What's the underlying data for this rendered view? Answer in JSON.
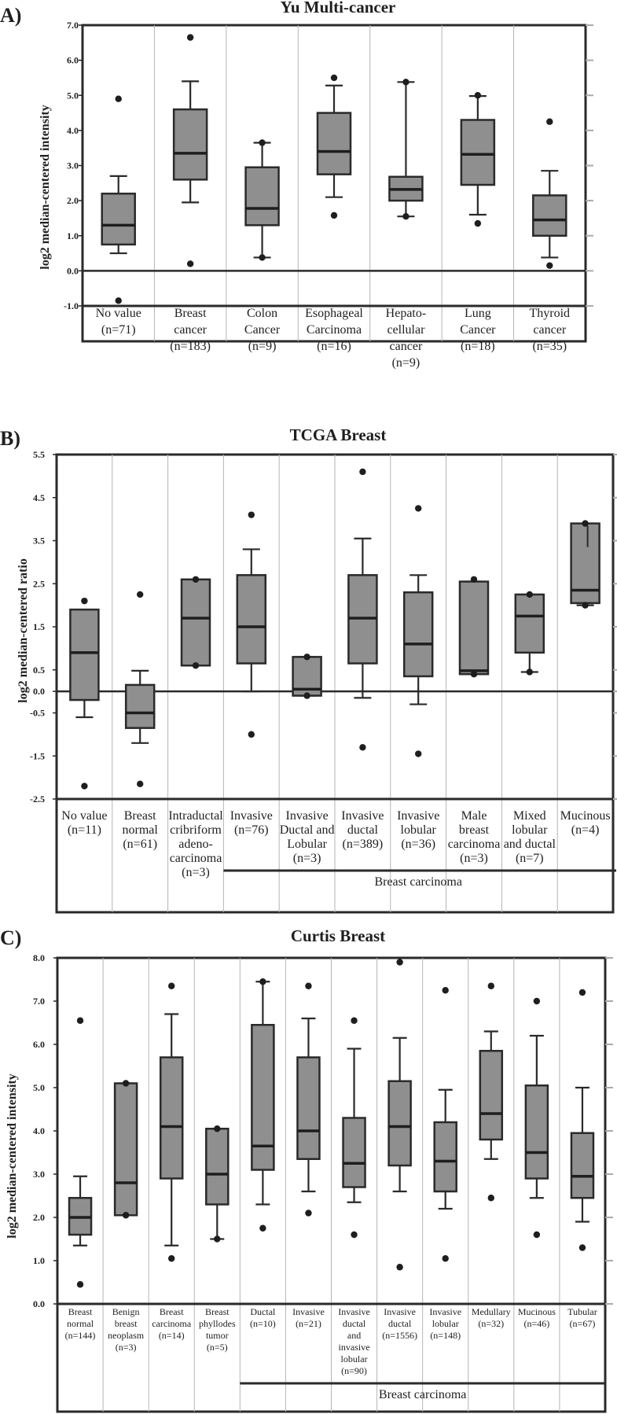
{
  "chart_data": [
    {
      "type": "box",
      "panel": "A)",
      "title": "Yu Multi-cancer",
      "ylabel": "log2 median-centered intensity",
      "ylim": [
        -1.0,
        7.0
      ],
      "yticks": [
        "7.0",
        "6.0",
        "5.0",
        "4.0",
        "3.0",
        "2.0",
        "1.0",
        "0.0",
        "-1.0"
      ],
      "categories": [
        [
          "No value",
          "(n=71)"
        ],
        [
          "Breast",
          "cancer",
          "(n=183)"
        ],
        [
          "Colon",
          "Cancer",
          "(n=9)"
        ],
        [
          "Esophageal",
          "Carcinoma",
          "(n=16)"
        ],
        [
          "Hepato-",
          "cellular",
          "cancer",
          "(n=9)"
        ],
        [
          "Lung",
          "Cancer",
          "(n=18)"
        ],
        [
          "Thyroid",
          "cancer",
          "(n=35)"
        ]
      ],
      "boxes": [
        {
          "min": 0.5,
          "q1": 0.75,
          "median": 1.3,
          "q3": 2.2,
          "max": 2.7,
          "outliers": [
            4.9,
            -0.85
          ]
        },
        {
          "min": 1.95,
          "q1": 2.6,
          "median": 3.35,
          "q3": 4.6,
          "max": 5.4,
          "outliers": [
            6.65,
            0.2
          ]
        },
        {
          "min": 0.38,
          "q1": 1.3,
          "median": 1.78,
          "q3": 2.95,
          "max": 3.65,
          "outliers": [
            3.65,
            0.38
          ]
        },
        {
          "min": 2.1,
          "q1": 2.75,
          "median": 3.4,
          "q3": 4.5,
          "max": 5.28,
          "outliers": [
            5.5,
            1.58
          ]
        },
        {
          "min": 1.55,
          "q1": 2.0,
          "median": 2.32,
          "q3": 2.68,
          "max": 5.38,
          "outliers": [
            5.38,
            1.55
          ]
        },
        {
          "min": 1.6,
          "q1": 2.45,
          "median": 3.32,
          "q3": 4.3,
          "max": 4.98,
          "outliers": [
            5.0,
            1.35
          ]
        },
        {
          "min": 0.38,
          "q1": 1.0,
          "median": 1.45,
          "q3": 2.15,
          "max": 2.85,
          "outliers": [
            4.25,
            0.15
          ]
        }
      ]
    },
    {
      "type": "box",
      "panel": "B)",
      "title": "TCGA Breast",
      "ylabel": "log2 median-centered ratio",
      "ylim": [
        -2.5,
        5.5
      ],
      "yticks": [
        "5.5",
        "4.5",
        "3.5",
        "2.5",
        "1.5",
        "0.5",
        "0.0",
        "-0.5",
        "-1.5",
        "-2.5"
      ],
      "categories": [
        [
          "No value",
          "(n=11)"
        ],
        [
          "Breast",
          "normal",
          "(n=61)"
        ],
        [
          "Intraductal",
          "cribriform",
          "adeno-",
          "carcinoma",
          "(n=3)"
        ],
        [
          "Invasive",
          "(n=76)"
        ],
        [
          "Invasive",
          "Ductal and",
          "Lobular",
          "(n=3)"
        ],
        [
          "Invasive",
          "ductal",
          "(n=389)"
        ],
        [
          "Invasive",
          "lobular",
          "(n=36)"
        ],
        [
          "Male",
          "breast",
          "carcinoma",
          "(n=3)"
        ],
        [
          "Mixed",
          "lobular",
          "and ductal",
          "(n=7)"
        ],
        [
          "Mucinous",
          "(n=4)"
        ]
      ],
      "group_label": "Breast carcinoma",
      "boxes": [
        {
          "min": -0.6,
          "q1": -0.2,
          "median": 0.9,
          "q3": 1.9,
          "max": 1.9,
          "outliers": [
            2.1,
            -2.2
          ]
        },
        {
          "min": -1.2,
          "q1": -0.85,
          "median": -0.5,
          "q3": 0.15,
          "max": 0.48,
          "outliers": [
            2.25,
            -2.15
          ]
        },
        {
          "min": 0.6,
          "q1": 0.6,
          "median": 1.7,
          "q3": 2.6,
          "max": 2.6,
          "outliers": [
            2.6,
            0.6
          ]
        },
        {
          "min": 0.0,
          "q1": 0.65,
          "median": 1.5,
          "q3": 2.7,
          "max": 3.3,
          "outliers": [
            4.1,
            -1.0
          ]
        },
        {
          "min": -0.1,
          "q1": -0.1,
          "median": 0.05,
          "q3": 0.8,
          "max": 0.8,
          "outliers": [
            0.8,
            -0.1
          ]
        },
        {
          "min": -0.15,
          "q1": 0.65,
          "median": 1.7,
          "q3": 2.7,
          "max": 3.55,
          "outliers": [
            5.1,
            -1.3
          ]
        },
        {
          "min": -0.3,
          "q1": 0.35,
          "median": 1.1,
          "q3": 2.3,
          "max": 2.7,
          "outliers": [
            4.25,
            -1.45
          ]
        },
        {
          "min": 0.4,
          "q1": 0.4,
          "median": 0.48,
          "q3": 2.55,
          "max": 2.55,
          "outliers": [
            2.6,
            0.4
          ]
        },
        {
          "min": 0.45,
          "q1": 0.9,
          "median": 1.75,
          "q3": 2.25,
          "max": 2.25,
          "outliers": [
            2.25,
            0.45
          ]
        },
        {
          "min": 2.0,
          "q1": 2.05,
          "median": 2.35,
          "q3": 3.9,
          "max": 3.9,
          "outliers": [
            3.9,
            2.0
          ],
          "mean": 3.35
        }
      ]
    },
    {
      "type": "box",
      "panel": "C)",
      "title": "Curtis Breast",
      "ylabel": "log2 median-centered intensity",
      "ylim": [
        0.0,
        8.0
      ],
      "yticks": [
        "8.0",
        "7.0",
        "6.0",
        "5.0",
        "4.0",
        "3.0",
        "2.0",
        "1.0",
        "0.0"
      ],
      "categories": [
        [
          "Breast",
          "normal",
          "(n=144)"
        ],
        [
          "Benign",
          "breast",
          "neoplasm",
          "(n=3)"
        ],
        [
          "Breast",
          "carcinoma",
          "(n=14)"
        ],
        [
          "Breast",
          "phyllodes",
          "tumor",
          "(n=5)"
        ],
        [
          "Ductal",
          "(n=10)"
        ],
        [
          "Invasive",
          "(n=21)"
        ],
        [
          "Invasive",
          "ductal",
          "and",
          "invasive",
          "lobular",
          "(n=90)"
        ],
        [
          "Invasive",
          "ductal",
          "(n=1556)"
        ],
        [
          "Invasive",
          "lobular",
          "(n=148)"
        ],
        [
          "Medullary",
          "(n=32)"
        ],
        [
          "Mucinous",
          "(n=46)"
        ],
        [
          "Tubular",
          "(n=67)"
        ]
      ],
      "group_label": "Breast carcinoma",
      "boxes": [
        {
          "min": 1.35,
          "q1": 1.6,
          "median": 2.0,
          "q3": 2.45,
          "max": 2.95,
          "outliers": [
            6.55,
            0.45
          ]
        },
        {
          "min": 2.05,
          "q1": 2.05,
          "median": 2.8,
          "q3": 5.1,
          "max": 5.1,
          "outliers": [
            5.1,
            2.05
          ]
        },
        {
          "min": 1.35,
          "q1": 2.9,
          "median": 4.1,
          "q3": 5.7,
          "max": 6.7,
          "outliers": [
            7.35,
            1.05
          ]
        },
        {
          "min": 1.5,
          "q1": 2.3,
          "median": 3.0,
          "q3": 4.05,
          "max": 4.05,
          "outliers": [
            4.05,
            1.5
          ]
        },
        {
          "min": 2.3,
          "q1": 3.1,
          "median": 3.65,
          "q3": 6.45,
          "max": 7.45,
          "outliers": [
            7.45,
            1.75
          ]
        },
        {
          "min": 2.6,
          "q1": 3.35,
          "median": 4.0,
          "q3": 5.7,
          "max": 6.6,
          "outliers": [
            7.35,
            2.1
          ]
        },
        {
          "min": 2.35,
          "q1": 2.7,
          "median": 3.25,
          "q3": 4.3,
          "max": 5.9,
          "outliers": [
            6.55,
            1.6
          ]
        },
        {
          "min": 2.6,
          "q1": 3.2,
          "median": 4.1,
          "q3": 5.15,
          "max": 6.15,
          "outliers": [
            7.9,
            0.85
          ]
        },
        {
          "min": 2.2,
          "q1": 2.6,
          "median": 3.3,
          "q3": 4.2,
          "max": 4.95,
          "outliers": [
            7.25,
            1.05
          ]
        },
        {
          "min": 3.35,
          "q1": 3.8,
          "median": 4.4,
          "q3": 5.85,
          "max": 6.3,
          "outliers": [
            7.35,
            2.45
          ]
        },
        {
          "min": 2.45,
          "q1": 2.9,
          "median": 3.5,
          "q3": 5.05,
          "max": 6.2,
          "outliers": [
            7.0,
            1.6
          ]
        },
        {
          "min": 1.9,
          "q1": 2.45,
          "median": 2.95,
          "q3": 3.95,
          "max": 5.0,
          "outliers": [
            7.2,
            1.3
          ]
        }
      ]
    }
  ]
}
